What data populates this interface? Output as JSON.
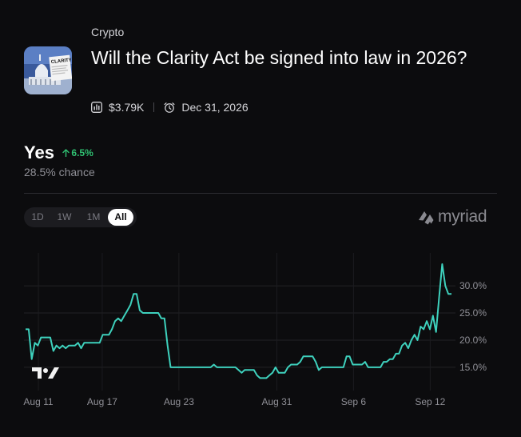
{
  "market": {
    "category": "Crypto",
    "title": "Will the Clarity Act be signed into law in 2026?",
    "volume": "$3.79K",
    "end_date": "Dec 31, 2026",
    "thumbnail_text": "CLARITY"
  },
  "outcome": {
    "name": "Yes",
    "change": "6.5%",
    "change_direction": "up",
    "chance": "28.5% chance"
  },
  "ranges": [
    "1D",
    "1W",
    "1M",
    "All"
  ],
  "active_range": "All",
  "brand": "myriad",
  "colors": {
    "background": "#0c0c0e",
    "line": "#3ed1bd",
    "up": "#2fbf71",
    "grid": "#26262b"
  },
  "icons": [
    "volume-icon",
    "alarm-clock-icon",
    "arrow-up-icon",
    "myriad-logo-icon",
    "tradingview-icon"
  ],
  "chart_data": {
    "type": "line",
    "x_tick_labels": [
      "Aug 11",
      "Aug 17",
      "Aug 23",
      "Aug 31",
      "Sep 6",
      "Sep 12"
    ],
    "y_tick_labels": [
      "30.0%",
      "25.0%",
      "20.0%",
      "15.0%"
    ],
    "ylim": [
      11,
      34
    ],
    "y_ticks": [
      30,
      25,
      20,
      15
    ],
    "grid": true,
    "series": [
      {
        "values": [
          22,
          22,
          16.5,
          19.5,
          19,
          20.5,
          20.5,
          20.5,
          20.5,
          18,
          19,
          18.5,
          19,
          18.5,
          19,
          19,
          19,
          19.5,
          18.5,
          19.5,
          19.5,
          19.5,
          19.5,
          19.5,
          19.5,
          21,
          21,
          21,
          22,
          23.5,
          24,
          23.5,
          24.5,
          25.5,
          26.5,
          28.5,
          28.5,
          25.5,
          25,
          25,
          25,
          25,
          25,
          25,
          24,
          24,
          19,
          15,
          15,
          15,
          15,
          15,
          15,
          15,
          15,
          15,
          15,
          15,
          15,
          15,
          15,
          15.5,
          15,
          15,
          15,
          15,
          15,
          15,
          15,
          14.5,
          14,
          14.5,
          14.5,
          14.5,
          14.5,
          13.5,
          13,
          13,
          13,
          13.5,
          14,
          15,
          14,
          14,
          14,
          15,
          15.5,
          15.5,
          15.5,
          16,
          17,
          17,
          17,
          17,
          16,
          14.5,
          15,
          15,
          15,
          15,
          15,
          15,
          15,
          15,
          17,
          17,
          15.5,
          15.5,
          15.5,
          15.5,
          16,
          15,
          15,
          15,
          15,
          15,
          16,
          16,
          16.5,
          16.5,
          17.5,
          17.5,
          19,
          19.5,
          18.5,
          20,
          21,
          20,
          22.5,
          22,
          23.5,
          22,
          24.5,
          21.5,
          28,
          34,
          30,
          28.5,
          28.5
        ]
      }
    ]
  }
}
